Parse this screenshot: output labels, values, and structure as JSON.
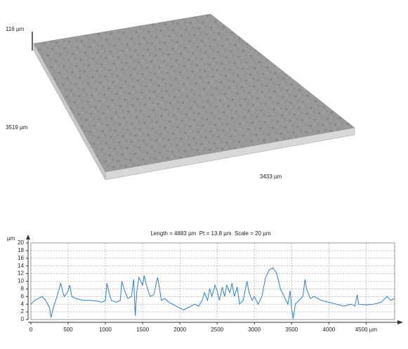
{
  "surface": {
    "z_label": "116 µm",
    "y_label": "3519 µm",
    "x_label": "3433 µm"
  },
  "chart_data": {
    "type": "line",
    "title": "Length = 4883 µm  Pt = 13.8 µm  Scale = 20 µm",
    "y_label": "µm",
    "color": "#2f7fc8",
    "grid": true,
    "xlim": [
      0,
      4883
    ],
    "ylim": [
      0,
      20
    ],
    "xticks": [
      0,
      500,
      1000,
      1500,
      2000,
      2500,
      3000,
      3500,
      4000,
      {
        "value": 4500,
        "label": "4500 µm"
      }
    ],
    "yticks": [
      0,
      2,
      4,
      6,
      8,
      10,
      12,
      14,
      16,
      18,
      20
    ],
    "x": [
      0,
      50,
      100,
      150,
      200,
      250,
      270,
      300,
      350,
      400,
      430,
      450,
      500,
      520,
      550,
      600,
      700,
      800,
      900,
      950,
      1000,
      1020,
      1050,
      1080,
      1150,
      1200,
      1220,
      1250,
      1300,
      1350,
      1380,
      1400,
      1420,
      1450,
      1500,
      1520,
      1550,
      1600,
      1650,
      1700,
      1720,
      1750,
      1800,
      1850,
      1900,
      1950,
      2000,
      2050,
      2100,
      2150,
      2200,
      2250,
      2300,
      2330,
      2370,
      2400,
      2430,
      2470,
      2500,
      2530,
      2570,
      2600,
      2630,
      2670,
      2700,
      2730,
      2770,
      2800,
      2850,
      2900,
      2930,
      2970,
      3000,
      3050,
      3100,
      3150,
      3200,
      3250,
      3300,
      3350,
      3400,
      3450,
      3480,
      3500,
      3520,
      3550,
      3600,
      3650,
      3680,
      3700,
      3750,
      3800,
      3900,
      4000,
      4100,
      4200,
      4300,
      4350,
      4380,
      4400,
      4500,
      4600,
      4700,
      4780,
      4830,
      4880
    ],
    "values": [
      4,
      5,
      5.5,
      6,
      5,
      3,
      0.5,
      3,
      6,
      9.5,
      7,
      6,
      7.5,
      9,
      6,
      5.5,
      5,
      5,
      4.8,
      4.5,
      5,
      9.5,
      7,
      5,
      4.5,
      5,
      10,
      8,
      5.5,
      6,
      10.5,
      1,
      7,
      11,
      9,
      11.5,
      9,
      6,
      6.5,
      11,
      9,
      5,
      5.5,
      4.5,
      4,
      3.5,
      3,
      2.5,
      3,
      3.5,
      4,
      3.5,
      5,
      7,
      5,
      8,
      6,
      9,
      7.5,
      5,
      8.5,
      6,
      9,
      7,
      9.5,
      6,
      8.5,
      4,
      5,
      10,
      7,
      5,
      6,
      4,
      6,
      11,
      13,
      13.5,
      12,
      8,
      6,
      4,
      7.5,
      3,
      0.2,
      4,
      5,
      6,
      10.5,
      8,
      5.5,
      6,
      5,
      4.5,
      4,
      3.5,
      4,
      3.5,
      6.5,
      4,
      3.8,
      4,
      4.5,
      6,
      5,
      5.5
    ]
  }
}
